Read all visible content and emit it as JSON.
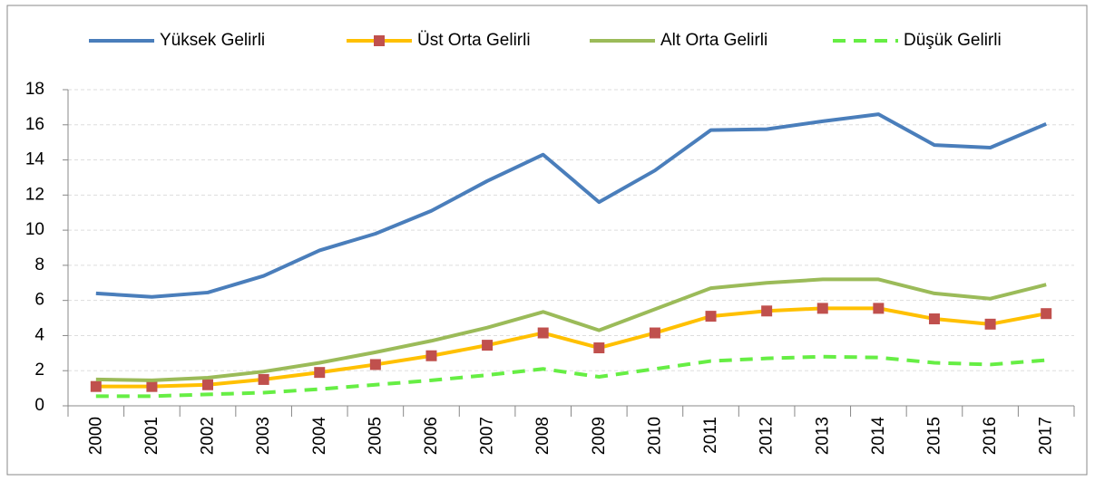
{
  "chart_data": {
    "type": "line",
    "categories": [
      "2000",
      "2001",
      "2002",
      "2003",
      "2004",
      "2005",
      "2006",
      "2007",
      "2008",
      "2009",
      "2010",
      "2011",
      "2012",
      "2013",
      "2014",
      "2015",
      "2016",
      "2017"
    ],
    "series": [
      {
        "name": "Yüksek Gelirli",
        "color": "#4a7ebb",
        "values": [
          6.4,
          6.2,
          6.45,
          7.4,
          8.85,
          9.8,
          11.1,
          12.8,
          14.3,
          11.6,
          13.4,
          15.7,
          15.75,
          16.2,
          16.6,
          14.85,
          14.7,
          16.05
        ]
      },
      {
        "name": "Üst Orta Gelirli",
        "color": "#ffc000",
        "marker": "square",
        "marker_color": "#c0504d",
        "values": [
          1.1,
          1.1,
          1.2,
          1.5,
          1.9,
          2.35,
          2.85,
          3.45,
          4.15,
          3.3,
          4.15,
          5.1,
          5.4,
          5.55,
          5.55,
          4.95,
          4.65,
          5.25
        ]
      },
      {
        "name": "Alt Orta Gelirli",
        "color": "#9bbb59",
        "values": [
          1.5,
          1.45,
          1.6,
          1.95,
          2.45,
          3.05,
          3.7,
          4.45,
          5.35,
          4.3,
          5.5,
          6.7,
          7.0,
          7.2,
          7.2,
          6.4,
          6.1,
          6.9
        ]
      },
      {
        "name": "Düşük Gelirli",
        "color": "#66ee44",
        "dash": true,
        "values": [
          0.55,
          0.55,
          0.65,
          0.75,
          0.95,
          1.2,
          1.45,
          1.75,
          2.1,
          1.65,
          2.1,
          2.55,
          2.7,
          2.8,
          2.75,
          2.45,
          2.35,
          2.6
        ]
      }
    ],
    "ylim": [
      0,
      18
    ],
    "yticks": [
      0,
      2,
      4,
      6,
      8,
      10,
      12,
      14,
      16,
      18
    ],
    "grid": true,
    "legend": "top"
  }
}
